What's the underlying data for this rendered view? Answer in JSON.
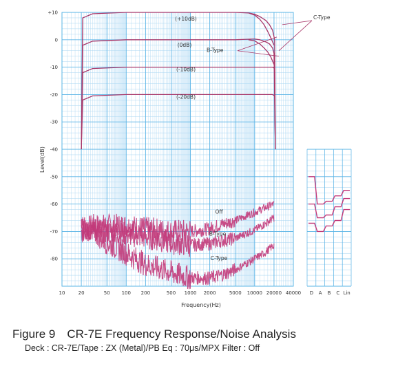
{
  "chart_data": {
    "type": "line",
    "title": "",
    "xlabel": "Frequency(Hz)",
    "ylabel": "Level(dB)",
    "xscale": "log",
    "xlim": [
      10,
      40000
    ],
    "ylim": [
      -90,
      10
    ],
    "grid": true,
    "x_ticks": [
      {
        "v": 10,
        "label": "10"
      },
      {
        "v": 20,
        "label": "20"
      },
      {
        "v": 50,
        "label": "50"
      },
      {
        "v": 100,
        "label": "100"
      },
      {
        "v": 200,
        "label": "200"
      },
      {
        "v": 500,
        "label": "500"
      },
      {
        "v": 1000,
        "label": "1000"
      },
      {
        "v": 2000,
        "label": "2000"
      },
      {
        "v": 5000,
        "label": "5000"
      },
      {
        "v": 10000,
        "label": "10000"
      },
      {
        "v": 20000,
        "label": "20000"
      },
      {
        "v": 40000,
        "label": "40000"
      }
    ],
    "y_ticks": [
      {
        "v": 10,
        "label": "+10"
      },
      {
        "v": 0,
        "label": "0"
      },
      {
        "v": -10,
        "label": "-10"
      },
      {
        "v": -20,
        "label": "-20"
      },
      {
        "v": -30,
        "label": "-30"
      },
      {
        "v": -40,
        "label": "-40"
      },
      {
        "v": -50,
        "label": "-50"
      },
      {
        "v": -60,
        "label": "-60"
      },
      {
        "v": -70,
        "label": "-70"
      },
      {
        "v": -80,
        "label": "-80"
      }
    ],
    "weighting_labels": [
      "D",
      "A",
      "B",
      "C",
      "Lin"
    ],
    "frequency_response": [
      {
        "name": "(+10dB)",
        "level": 10,
        "points": [
          [
            20,
            -40
          ],
          [
            21,
            8
          ],
          [
            30,
            9.5
          ],
          [
            100,
            10
          ],
          [
            1000,
            10
          ],
          [
            5000,
            10
          ],
          [
            8000,
            9.8
          ],
          [
            10000,
            9.3
          ],
          [
            12000,
            8.5
          ],
          [
            15000,
            7
          ],
          [
            17000,
            5.5
          ],
          [
            19000,
            3.5
          ],
          [
            20500,
            0
          ],
          [
            21000,
            -40
          ]
        ]
      },
      {
        "name": "(+10dB) B-Type",
        "level": 10,
        "points": [
          [
            8000,
            9.8
          ],
          [
            10000,
            9.0
          ],
          [
            12000,
            7.5
          ],
          [
            14000,
            5.5
          ],
          [
            16000,
            3
          ],
          [
            18000,
            0.5
          ],
          [
            20000,
            -2
          ]
        ]
      },
      {
        "name": "(0dB)",
        "level": 0,
        "points": [
          [
            20,
            -40
          ],
          [
            21,
            -2
          ],
          [
            30,
            -0.5
          ],
          [
            100,
            0
          ],
          [
            1000,
            0
          ],
          [
            5000,
            0
          ],
          [
            8000,
            0.2
          ],
          [
            10000,
            0.3
          ],
          [
            12000,
            0
          ],
          [
            15000,
            -0.8
          ],
          [
            17000,
            -1.5
          ],
          [
            19000,
            -3
          ],
          [
            20000,
            -5
          ],
          [
            21000,
            -40
          ]
        ]
      },
      {
        "name": "(0dB) B-Type",
        "level": 0,
        "points": [
          [
            8000,
            0
          ],
          [
            10000,
            -0.4
          ],
          [
            12000,
            -1.5
          ],
          [
            14000,
            -3
          ],
          [
            16000,
            -4.5
          ],
          [
            18000,
            -6.5
          ],
          [
            20000,
            -9
          ]
        ]
      },
      {
        "name": "(-10dB)",
        "level": -10,
        "points": [
          [
            20,
            -40
          ],
          [
            21,
            -12
          ],
          [
            30,
            -10.5
          ],
          [
            100,
            -10
          ],
          [
            1000,
            -10
          ],
          [
            10000,
            -10
          ],
          [
            19000,
            -10
          ],
          [
            20500,
            -10.5
          ],
          [
            21000,
            -40
          ]
        ]
      },
      {
        "name": "(-20dB)",
        "level": -20,
        "points": [
          [
            20,
            -40
          ],
          [
            21,
            -22
          ],
          [
            30,
            -20.5
          ],
          [
            100,
            -20
          ],
          [
            1000,
            -20
          ],
          [
            10000,
            -20
          ],
          [
            19000,
            -20
          ],
          [
            20500,
            -20.5
          ],
          [
            21000,
            -40
          ]
        ]
      }
    ],
    "annotations": {
      "plus10": "(+10dB)",
      "zero": "(0dB)",
      "minus10": "(-10dB)",
      "minus20": "(-20dB)",
      "ctype": "C-Type",
      "btype": "B-Type"
    },
    "noise": [
      {
        "name": "Off",
        "points": [
          [
            20,
            -70
          ],
          [
            30,
            -68
          ],
          [
            50,
            -68
          ],
          [
            100,
            -68
          ],
          [
            200,
            -69
          ],
          [
            500,
            -70
          ],
          [
            1000,
            -70
          ],
          [
            2000,
            -69
          ],
          [
            3000,
            -67.5
          ],
          [
            5000,
            -66
          ],
          [
            7000,
            -64.5
          ],
          [
            10000,
            -63
          ],
          [
            14000,
            -61.5
          ],
          [
            20000,
            -60
          ]
        ],
        "weighted": {
          "D": -50,
          "A": -60,
          "B": -59,
          "C": -57,
          "Lin": -55
        }
      },
      {
        "name": "B-Type",
        "points": [
          [
            20,
            -70
          ],
          [
            30,
            -69
          ],
          [
            50,
            -70
          ],
          [
            100,
            -71
          ],
          [
            200,
            -72
          ],
          [
            500,
            -74
          ],
          [
            1000,
            -75
          ],
          [
            2000,
            -74.5
          ],
          [
            3000,
            -73.5
          ],
          [
            5000,
            -72.5
          ],
          [
            7000,
            -71
          ],
          [
            10000,
            -69.5
          ],
          [
            14000,
            -67.5
          ],
          [
            20000,
            -65
          ]
        ],
        "weighted": {
          "D": -60,
          "A": -65,
          "B": -64,
          "C": -61,
          "Lin": -58
        }
      },
      {
        "name": "C-Type",
        "points": [
          [
            20,
            -68
          ],
          [
            30,
            -70
          ],
          [
            50,
            -74
          ],
          [
            100,
            -78
          ],
          [
            200,
            -82
          ],
          [
            500,
            -85
          ],
          [
            1000,
            -87
          ],
          [
            2000,
            -87
          ],
          [
            3000,
            -86
          ],
          [
            5000,
            -84
          ],
          [
            7000,
            -82
          ],
          [
            10000,
            -80
          ],
          [
            14000,
            -78
          ],
          [
            20000,
            -75
          ]
        ],
        "weighted": {
          "D": -67,
          "A": -70,
          "B": -68,
          "C": -66,
          "Lin": -62
        }
      }
    ],
    "noise_labels": {
      "off": "Off",
      "btype": "B-Type",
      "ctype": "C-Type"
    }
  },
  "caption": {
    "title": "Figure 9 CR-7E Frequency Response/Noise Analysis",
    "subtitle": "Deck : CR-7E/Tape : ZX (Metal)/PB Eq : 70μs/MPX Filter : Off"
  },
  "colors": {
    "grid": "#5ab4e6",
    "grid_minor": "#a8d6f2",
    "trace": "#a8386a",
    "noise": "#c23a7a"
  }
}
